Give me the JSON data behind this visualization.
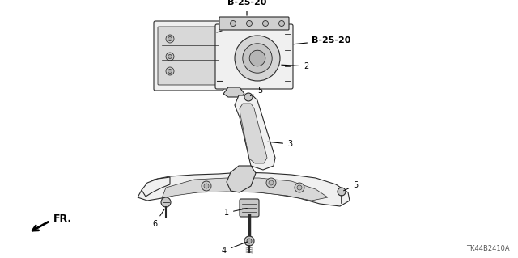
{
  "bg_color": "#ffffff",
  "fig_width": 6.4,
  "fig_height": 3.19,
  "dpi": 100,
  "part_code_top": "B-25-20",
  "part_code_side": "B-25-20",
  "footer_code": "TK44B2410A",
  "fr_label": "FR.",
  "line_color": "#2a2a2a",
  "fill_color": "#e0e0e0",
  "fill_light": "#f0f0f0"
}
